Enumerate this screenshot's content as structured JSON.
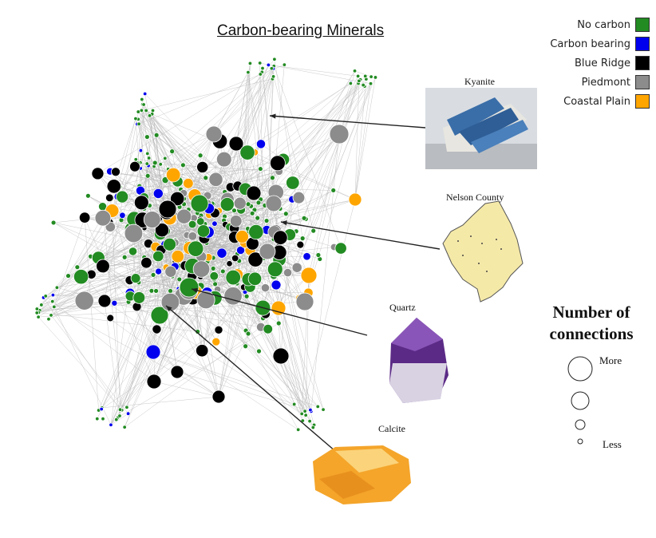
{
  "title": "Carbon-bearing Minerals",
  "legend": [
    {
      "label": "No carbon",
      "color": "#228b22"
    },
    {
      "label": "Carbon bearing",
      "color": "#0000ee"
    },
    {
      "label": "Blue Ridge",
      "color": "#000000"
    },
    {
      "label": "Piedmont",
      "color": "#8c8c8c"
    },
    {
      "label": "Coastal Plain",
      "color": "#ffa500"
    }
  ],
  "callouts": [
    {
      "label": "Kyanite",
      "picture": "kyanite-crystal-photo"
    },
    {
      "label": "Nelson County",
      "picture": "nelson-county-map"
    },
    {
      "label": "Quartz",
      "picture": "quartz-crystal-photo"
    },
    {
      "label": "Calcite",
      "picture": "calcite-crystal-photo"
    }
  ],
  "size_legend": {
    "title_line1": "Number of",
    "title_line2": "connections",
    "more_label": "More",
    "less_label": "Less"
  },
  "edge_color": "#b4b4b4",
  "node_outline_color": "#ffffff"
}
